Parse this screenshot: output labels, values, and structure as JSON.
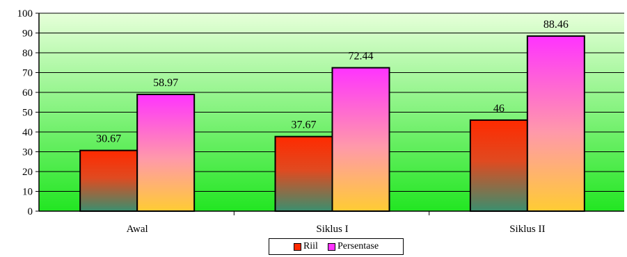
{
  "chart_data": {
    "type": "bar",
    "title": "",
    "xlabel": "",
    "ylabel": "",
    "categories": [
      "Awal",
      "Siklus I",
      "Siklus II"
    ],
    "series": [
      {
        "name": "Riil",
        "values": [
          30.67,
          37.67,
          46
        ],
        "labels": [
          "30.67",
          "37.67",
          "46"
        ],
        "color": "#ff2a00"
      },
      {
        "name": "Persentase",
        "values": [
          58.97,
          72.44,
          88.46
        ],
        "labels": [
          "58.97",
          "72.44",
          "88.46"
        ],
        "color": "#ff33ff"
      }
    ],
    "ylim": [
      0,
      100
    ],
    "yticks": [
      "0",
      "10",
      "20",
      "30",
      "40",
      "50",
      "60",
      "70",
      "80",
      "90",
      "100"
    ],
    "grid": true,
    "legend_position": "bottom",
    "colors": {
      "plot_bg_top": "#e6ffd9",
      "plot_bg_bottom": "#22e622",
      "bar_bottom": "#ffcc33",
      "bar_base_riil": "#3a8f6e"
    }
  }
}
